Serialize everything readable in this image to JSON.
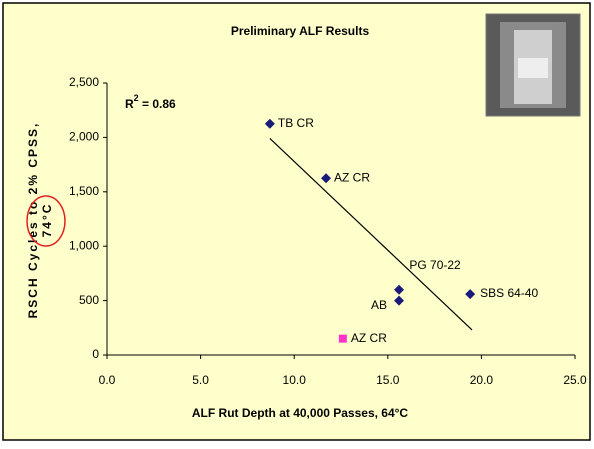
{
  "chart_data": {
    "type": "scatter",
    "title": "Preliminary ALF Results",
    "x_label": "ALF Rut Depth at 40,000 Passes, 64°C",
    "y_label": [
      "RSCH Cycles to 2% CPSS,",
      "74°C"
    ],
    "r_squared": {
      "base": "R",
      "superscript": "2",
      "text": " = 0.86"
    },
    "xlim": [
      0,
      25
    ],
    "ylim": [
      0,
      2500
    ],
    "xticks": [
      {
        "value": 0,
        "label": "0.0"
      },
      {
        "value": 5,
        "label": "5.0"
      },
      {
        "value": 10,
        "label": "10.0"
      },
      {
        "value": 15,
        "label": "15.0"
      },
      {
        "value": 20,
        "label": "20.0"
      },
      {
        "value": 25,
        "label": "25.0"
      }
    ],
    "yticks": [
      0,
      500,
      {
        "value": 1000,
        "label": "1,000"
      },
      {
        "value": 1500,
        "label": "1,500"
      },
      {
        "value": 2000,
        "label": "2,000"
      },
      {
        "value": 2500,
        "label": "2,500"
      }
    ],
    "series": [
      {
        "color": "#1a1a7a",
        "marker": "diamond",
        "x": [
          8.7,
          11.7,
          15.6,
          15.6,
          19.4
        ],
        "values": [
          2125,
          1625,
          600,
          500,
          560
        ],
        "labels": [
          "TB CR",
          "AZ CR",
          "PG 70-22",
          "AB",
          "SBS 64-40"
        ]
      },
      {
        "color": "#ff33cc",
        "marker": "square",
        "x": [
          12.6
        ],
        "values": [
          150
        ],
        "labels": [
          "AZ CR"
        ]
      }
    ],
    "trendline": {
      "x": [
        8.7,
        19.5
      ],
      "values": [
        1990,
        230
      ]
    }
  }
}
